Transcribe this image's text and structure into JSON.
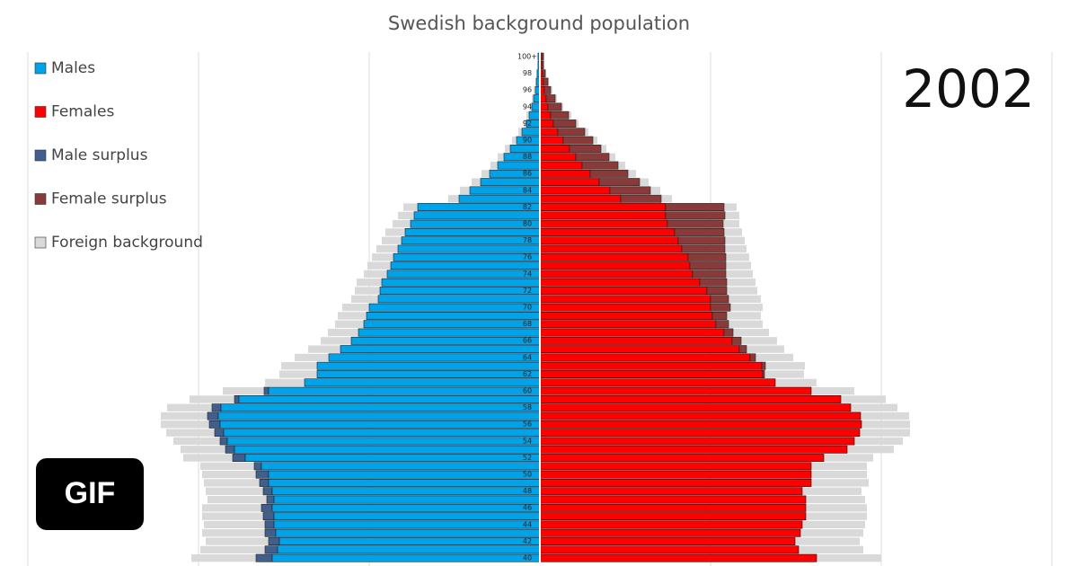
{
  "chart_data": {
    "type": "pyramid",
    "title": "Swedish background population",
    "year": "2002",
    "badge": "GIF",
    "categories": [
      "100+",
      null,
      "98",
      null,
      "96",
      null,
      "94",
      null,
      "92",
      null,
      "90",
      null,
      "88",
      null,
      "86",
      null,
      "84",
      null,
      "82",
      null,
      "80",
      null,
      "78",
      null,
      "76",
      null,
      "74",
      null,
      "72",
      null,
      "70",
      null,
      "68",
      null,
      "66",
      null,
      "64",
      null,
      "62",
      null,
      "60",
      null,
      "58",
      null,
      "56",
      null,
      "54",
      null,
      "52",
      null,
      "50",
      null,
      "48",
      null,
      "46",
      null,
      "44",
      null,
      "42",
      null,
      "40"
    ],
    "xlim": [
      -570,
      570
    ],
    "grid_x": [
      -570,
      -380,
      -190,
      190,
      380,
      570
    ],
    "series": [
      {
        "name": "Males",
        "color": "#00a2e8",
        "side": "left",
        "values": [
          2,
          2,
          3,
          4,
          5,
          7,
          9,
          12,
          15,
          20,
          26,
          33,
          40,
          47,
          56,
          66,
          78,
          90,
          136,
          140,
          144,
          150,
          154,
          158,
          163,
          166,
          170,
          176,
          178,
          180,
          190,
          193,
          196,
          202,
          210,
          222,
          235,
          248,
          248,
          262,
          302,
          335,
          355,
          358,
          356,
          352,
          348,
          340,
          328,
          310,
          302,
          302,
          298,
          296,
          298,
          296,
          296,
          294,
          290,
          292,
          298
        ]
      },
      {
        "name": "Females",
        "color": "#ff0000",
        "side": "right",
        "values": [
          2,
          2,
          3,
          4,
          5,
          7,
          9,
          12,
          15,
          20,
          26,
          33,
          40,
          47,
          56,
          66,
          78,
          90,
          140,
          140,
          142,
          150,
          154,
          158,
          165,
          167,
          170,
          178,
          186,
          190,
          190,
          192,
          196,
          205,
          214,
          222,
          234,
          247,
          248,
          262,
          302,
          335,
          346,
          357,
          358,
          356,
          350,
          342,
          316,
          302,
          302,
          302,
          292,
          296,
          296,
          296,
          292,
          290,
          284,
          288,
          308
        ]
      },
      {
        "name": "Male surplus",
        "color": "#3f5f8f",
        "side": "left",
        "values": [
          0,
          0,
          0,
          0,
          0,
          0,
          0,
          0,
          0,
          0,
          0,
          0,
          0,
          0,
          0,
          0,
          0,
          0,
          0,
          0,
          0,
          0,
          0,
          0,
          0,
          0,
          0,
          0,
          0,
          0,
          0,
          0,
          0,
          0,
          0,
          0,
          0,
          0,
          0,
          0,
          5,
          5,
          10,
          12,
          12,
          10,
          8,
          10,
          14,
          8,
          14,
          10,
          10,
          8,
          12,
          12,
          10,
          12,
          12,
          14,
          18
        ]
      },
      {
        "name": "Female surplus",
        "color": "#8b3a3a",
        "side": "right",
        "values": [
          2,
          2,
          3,
          5,
          7,
          10,
          15,
          20,
          25,
          30,
          33,
          35,
          37,
          40,
          42,
          45,
          45,
          45,
          65,
          66,
          62,
          55,
          52,
          48,
          42,
          40,
          37,
          30,
          22,
          20,
          22,
          16,
          14,
          10,
          10,
          8,
          6,
          4,
          2,
          0,
          0,
          0,
          0,
          0,
          0,
          0,
          0,
          0,
          0,
          0,
          0,
          0,
          0,
          0,
          0,
          0,
          0,
          0,
          0,
          0,
          0
        ]
      },
      {
        "name": "Foreign background",
        "color": "#d9d9d9",
        "side": "both",
        "values": [
          1,
          1,
          1,
          1,
          2,
          2,
          2,
          3,
          3,
          4,
          5,
          6,
          7,
          8,
          9,
          10,
          11,
          12,
          16,
          18,
          20,
          22,
          22,
          24,
          24,
          26,
          26,
          28,
          28,
          30,
          30,
          32,
          32,
          34,
          34,
          36,
          38,
          40,
          42,
          44,
          46,
          50,
          50,
          52,
          54,
          54,
          52,
          50,
          55,
          60,
          60,
          62,
          64,
          66,
          66,
          68,
          68,
          70,
          70,
          72,
          72
        ],
        "values_female": [
          1,
          1,
          1,
          1,
          2,
          2,
          2,
          3,
          3,
          4,
          5,
          6,
          7,
          8,
          9,
          10,
          11,
          12,
          14,
          16,
          18,
          20,
          22,
          24,
          26,
          28,
          30,
          32,
          34,
          36,
          36,
          38,
          38,
          40,
          40,
          42,
          42,
          44,
          44,
          46,
          48,
          50,
          52,
          54,
          54,
          56,
          54,
          52,
          55,
          62,
          62,
          64,
          66,
          66,
          68,
          68,
          70,
          70,
          72,
          72,
          72
        ]
      }
    ]
  }
}
